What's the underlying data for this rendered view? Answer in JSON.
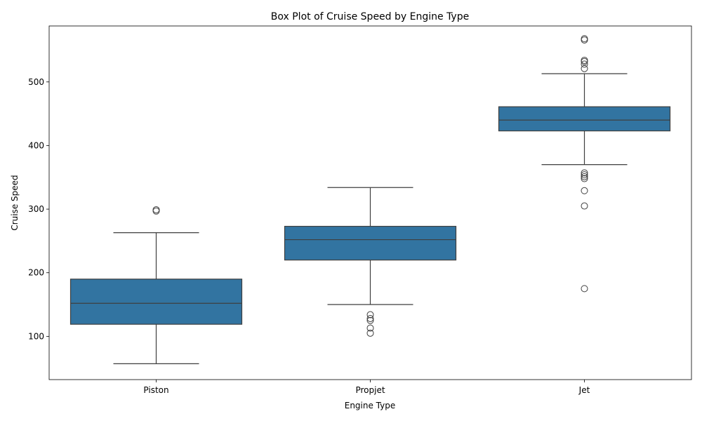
{
  "chart_data": {
    "type": "box",
    "title": "Box Plot of Cruise Speed by Engine Type",
    "xlabel": "Engine Type",
    "ylabel": "Cruise Speed",
    "ylim": [
      32,
      588
    ],
    "yticks": [
      100,
      200,
      300,
      400,
      500
    ],
    "grid": false,
    "box_color": "#3274a1",
    "line_color": "#3f3f3f",
    "categories": [
      "Piston",
      "Propjet",
      "Jet"
    ],
    "boxes": [
      {
        "category": "Piston",
        "whisker_low": 57,
        "q1": 119,
        "median": 152,
        "q3": 190,
        "whisker_high": 263,
        "outliers": [
          297,
          299
        ]
      },
      {
        "category": "Propjet",
        "whisker_low": 150,
        "q1": 220,
        "median": 252,
        "q3": 273,
        "whisker_high": 334,
        "outliers": [
          105,
          113,
          125,
          128,
          134
        ]
      },
      {
        "category": "Jet",
        "whisker_low": 370,
        "q1": 423,
        "median": 440,
        "q3": 461,
        "whisker_high": 513,
        "outliers": [
          175,
          305,
          329,
          348,
          351,
          354,
          357,
          521,
          528,
          532,
          534,
          566,
          568
        ]
      }
    ]
  }
}
